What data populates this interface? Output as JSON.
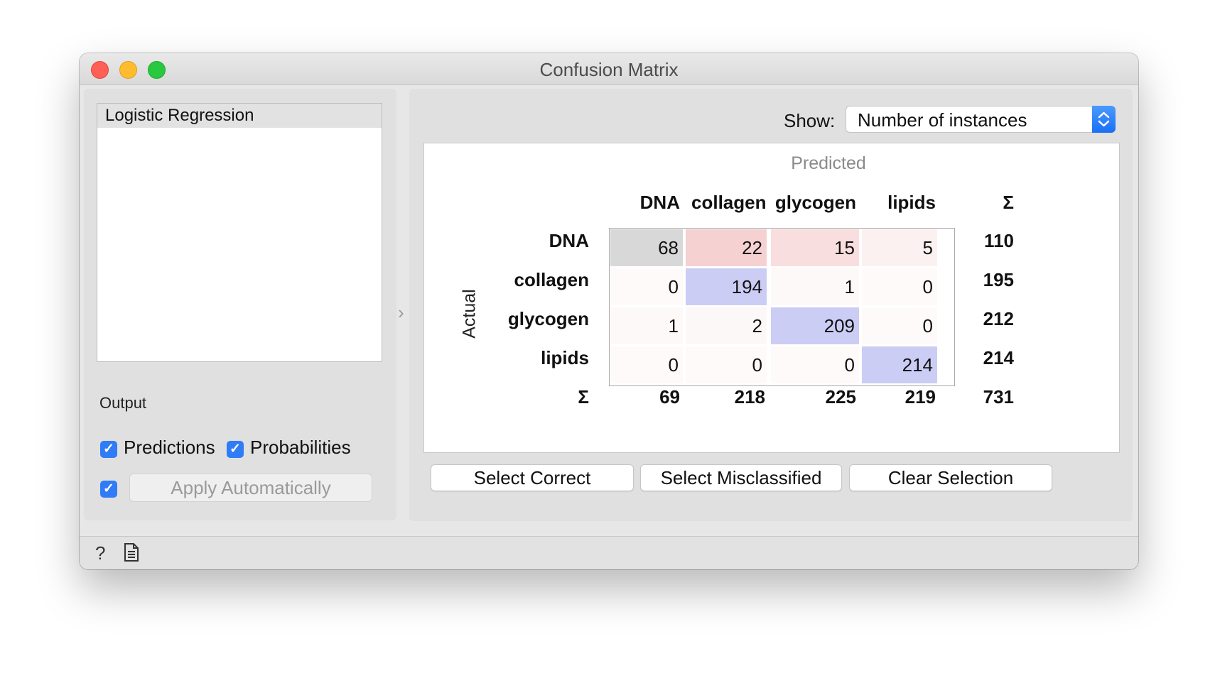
{
  "window": {
    "title": "Confusion Matrix"
  },
  "learners": {
    "items": [
      "Logistic Regression"
    ]
  },
  "output": {
    "label": "Output",
    "predictions": {
      "label": "Predictions",
      "checked": true
    },
    "probabilities": {
      "label": "Probabilities",
      "checked": true
    },
    "auto_apply": {
      "checked": true,
      "label": "Apply Automatically"
    }
  },
  "show": {
    "label": "Show:",
    "value": "Number of instances"
  },
  "matrix": {
    "predicted_label": "Predicted",
    "actual_label": "Actual",
    "classes": [
      "DNA",
      "collagen",
      "glycogen",
      "lipids"
    ],
    "sum_symbol": "Σ",
    "values": [
      [
        68,
        22,
        15,
        5
      ],
      [
        0,
        194,
        1,
        0
      ],
      [
        1,
        2,
        209,
        0
      ],
      [
        0,
        0,
        0,
        214
      ]
    ],
    "row_sums": [
      110,
      195,
      212,
      214
    ],
    "col_sums": [
      69,
      218,
      225,
      219
    ],
    "total": 731,
    "colors": {
      "misclassified": "#f4cccc",
      "correct": "#cccdf4",
      "selected": "#d8d8d8"
    }
  },
  "buttons": {
    "select_correct": "Select Correct",
    "select_misclassified": "Select Misclassified",
    "clear_selection": "Clear Selection"
  },
  "statusbar": {
    "icons": [
      "help-icon",
      "report-icon"
    ]
  }
}
